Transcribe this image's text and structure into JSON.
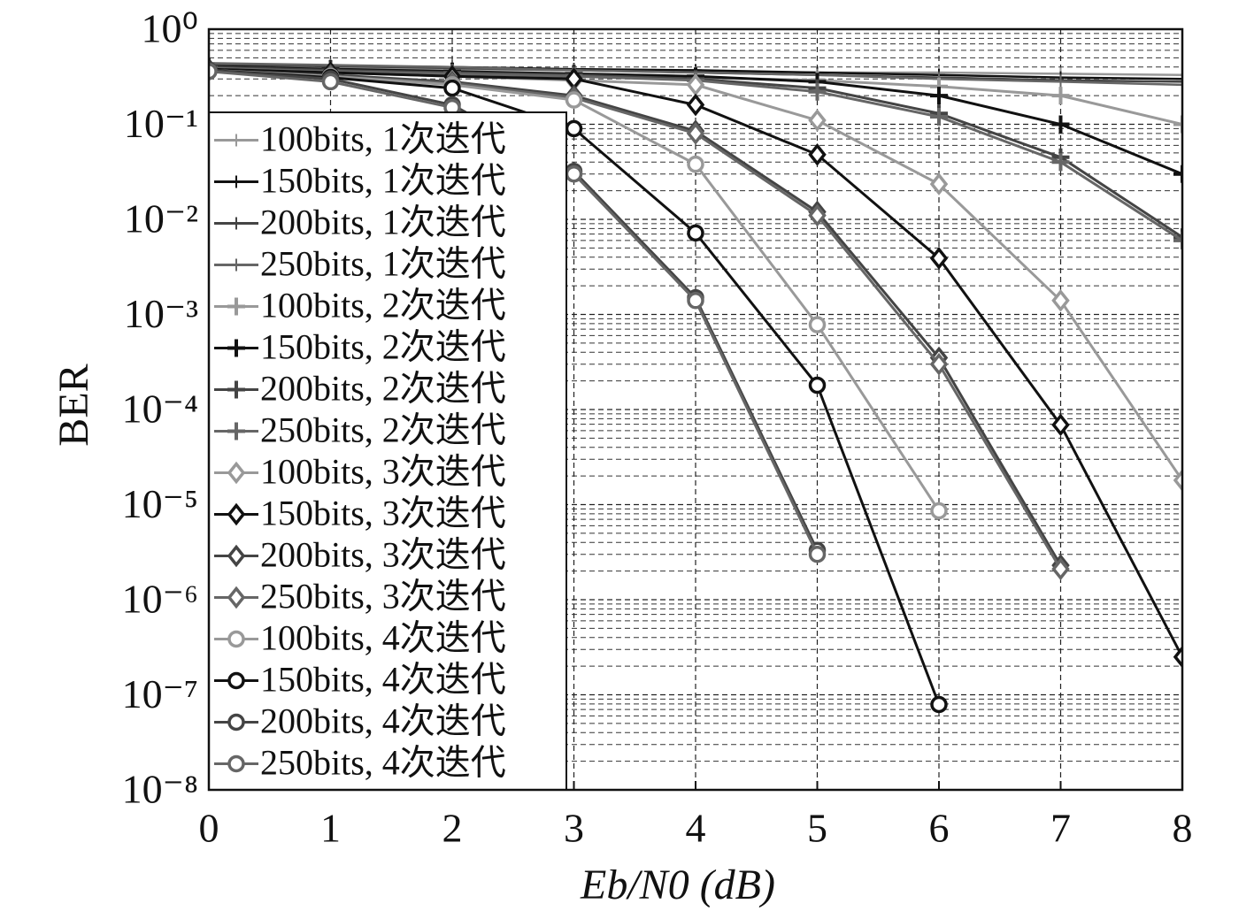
{
  "chart_data": {
    "type": "line",
    "y_label": "BER",
    "x_label": "Eb/N0 (dB)",
    "x": [
      0,
      1,
      2,
      3,
      4,
      5,
      6,
      7,
      8
    ],
    "xlim": [
      0,
      8
    ],
    "xticks": [
      0,
      1,
      2,
      3,
      4,
      5,
      6,
      7,
      8
    ],
    "ylim": [
      1e-08,
      1
    ],
    "log_y": true,
    "grid": true,
    "minor_grid": true,
    "legend": "left",
    "yticks": [
      {
        "value": 1,
        "label": "10⁰"
      },
      {
        "value": 0.1,
        "label": "10⁻¹"
      },
      {
        "value": 0.01,
        "label": "10⁻²"
      },
      {
        "value": 0.001,
        "label": "10⁻³"
      },
      {
        "value": 0.0001,
        "label": "10⁻⁴"
      },
      {
        "value": 1e-05,
        "label": "10⁻⁵"
      },
      {
        "value": 1e-06,
        "label": "10⁻⁶"
      },
      {
        "value": 1e-07,
        "label": "10⁻⁷"
      },
      {
        "value": 1e-08,
        "label": "10⁻⁸"
      }
    ],
    "series": [
      {
        "name": "100bits, 1次迭代",
        "color": "#999999",
        "marker": "plus",
        "values": [
          0.4,
          0.39,
          0.38,
          0.37,
          0.36,
          0.35,
          0.35,
          0.34,
          0.33
        ]
      },
      {
        "name": "150bits, 1次迭代",
        "color": "#111111",
        "marker": "plus",
        "values": [
          0.42,
          0.41,
          0.4,
          0.38,
          0.37,
          0.35,
          0.33,
          0.31,
          0.3
        ]
      },
      {
        "name": "200bits, 1次迭代",
        "color": "#444444",
        "marker": "plus",
        "values": [
          0.43,
          0.41,
          0.39,
          0.37,
          0.35,
          0.33,
          0.31,
          0.29,
          0.28
        ]
      },
      {
        "name": "250bits, 1次迭代",
        "color": "#666666",
        "marker": "plus",
        "values": [
          0.44,
          0.42,
          0.4,
          0.37,
          0.35,
          0.33,
          0.3,
          0.28,
          0.26
        ]
      },
      {
        "name": "100bits, 2次迭代",
        "color": "#999999",
        "marker": "plus-bold",
        "values": [
          0.38,
          0.36,
          0.34,
          0.32,
          0.31,
          0.29,
          0.25,
          0.2,
          0.1
        ]
      },
      {
        "name": "150bits, 2次迭代",
        "color": "#111111",
        "marker": "plus-bold",
        "values": [
          0.4,
          0.38,
          0.36,
          0.34,
          0.32,
          0.28,
          0.2,
          0.1,
          0.03
        ]
      },
      {
        "name": "200bits, 2次迭代",
        "color": "#444444",
        "marker": "plus-bold",
        "values": [
          0.4,
          0.37,
          0.35,
          0.33,
          0.3,
          0.24,
          0.13,
          0.045,
          0.0065
        ]
      },
      {
        "name": "250bits, 2次迭代",
        "color": "#666666",
        "marker": "plus-bold",
        "values": [
          0.39,
          0.36,
          0.34,
          0.32,
          0.29,
          0.22,
          0.12,
          0.04,
          0.006
        ]
      },
      {
        "name": "100bits, 3次迭代",
        "color": "#999999",
        "marker": "diamond",
        "values": [
          0.38,
          0.35,
          0.32,
          0.29,
          0.26,
          0.11,
          0.0235,
          0.0014,
          1.8e-05
        ]
      },
      {
        "name": "150bits, 3次迭代",
        "color": "#111111",
        "marker": "diamond",
        "values": [
          0.38,
          0.35,
          0.32,
          0.3,
          0.16,
          0.048,
          0.0039,
          6.9e-05,
          2.5e-07
        ]
      },
      {
        "name": "200bits, 3次迭代",
        "color": "#444444",
        "marker": "diamond",
        "values": [
          0.37,
          0.33,
          0.28,
          0.2,
          0.085,
          0.012,
          0.00035,
          2.3e-06,
          null
        ]
      },
      {
        "name": "250bits, 3次迭代",
        "color": "#666666",
        "marker": "diamond",
        "values": [
          0.37,
          0.32,
          0.27,
          0.19,
          0.08,
          0.011,
          0.0003,
          2.1e-06,
          null
        ]
      },
      {
        "name": "100bits, 4次迭代",
        "color": "#999999",
        "marker": "circle",
        "values": [
          0.37,
          0.32,
          0.26,
          0.18,
          0.038,
          0.00078,
          8.6e-06,
          null,
          null
        ]
      },
      {
        "name": "150bits, 4次迭代",
        "color": "#111111",
        "marker": "circle",
        "values": [
          0.37,
          0.31,
          0.24,
          0.09,
          0.0072,
          0.00018,
          7.9e-08,
          null,
          null
        ]
      },
      {
        "name": "200bits, 4次迭代",
        "color": "#444444",
        "marker": "circle",
        "values": [
          0.37,
          0.3,
          0.16,
          0.032,
          0.0015,
          3.3e-06,
          null,
          null,
          null
        ]
      },
      {
        "name": "250bits, 4次迭代",
        "color": "#666666",
        "marker": "circle",
        "values": [
          0.36,
          0.28,
          0.15,
          0.03,
          0.0014,
          3e-06,
          null,
          null,
          null
        ]
      }
    ]
  }
}
